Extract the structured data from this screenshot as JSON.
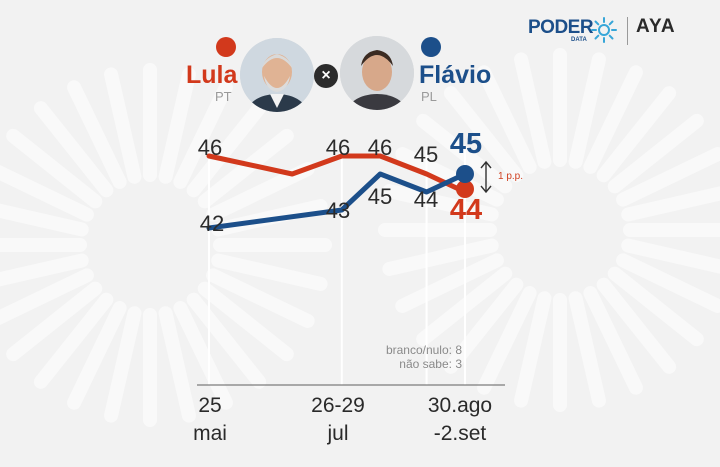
{
  "brand": {
    "poder": "PODER",
    "poder_sub": "DATA",
    "partner": "AYA"
  },
  "candidates": {
    "left": {
      "name": "Lula",
      "party": "PT",
      "color": "#d2391c"
    },
    "right": {
      "name": "Flávio",
      "party": "PL",
      "color": "#1c4f8a"
    },
    "vs_symbol": "×"
  },
  "chart_data": {
    "type": "line",
    "categories": [
      "25 mai",
      "26-29 jul",
      "30.ago-2.set"
    ],
    "x_tick_labels": [
      {
        "line1": "25",
        "line2": "mai"
      },
      {
        "line1": "26-29",
        "line2": "jul"
      },
      {
        "line1": "30.ago",
        "line2": "-2.set"
      }
    ],
    "series": [
      {
        "name": "Lula",
        "color": "#d2391c",
        "points": [
          {
            "label": "46",
            "value": 46,
            "pos": 0.0
          },
          {
            "label": "",
            "value": 45,
            "pos": 0.26
          },
          {
            "label": "46",
            "value": 46,
            "pos": 0.415
          },
          {
            "label": "46",
            "value": 46,
            "pos": 0.535
          },
          {
            "label": "45",
            "value": 45,
            "pos": 0.68
          },
          {
            "label": "44",
            "value": 44,
            "pos": 0.8
          }
        ]
      },
      {
        "name": "Flávio",
        "color": "#1c4f8a",
        "points": [
          {
            "label": "42",
            "value": 42,
            "pos": 0.0
          },
          {
            "label": "43",
            "value": 43,
            "pos": 0.415
          },
          {
            "label": "45",
            "value": 45,
            "pos": 0.535
          },
          {
            "label": "44",
            "value": 44,
            "pos": 0.68
          },
          {
            "label": "45",
            "value": 45,
            "pos": 0.8
          }
        ]
      }
    ],
    "difference_label": "1 p.p.",
    "notes": [
      "branco/nulo: 8",
      "não sabe: 3"
    ]
  }
}
